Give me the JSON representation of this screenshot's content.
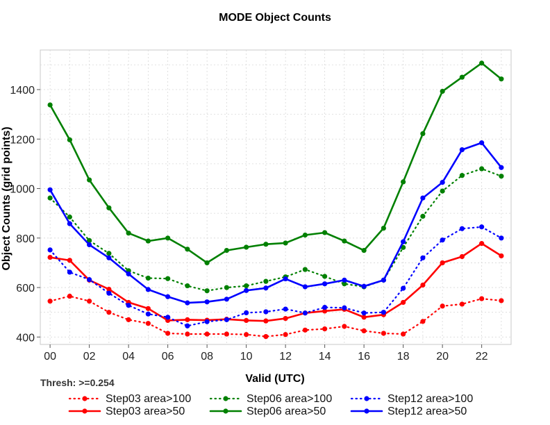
{
  "chart_data": {
    "type": "line",
    "title": "MODE Object Counts",
    "xlabel": "Valid (UTC)",
    "ylabel": "Object Counts (grid points)",
    "annotation": "Thresh: >=0.254",
    "xlim": [
      -0.5,
      23.5
    ],
    "ylim": [
      370,
      1560
    ],
    "x_ticks": [
      "00",
      "02",
      "04",
      "06",
      "08",
      "10",
      "12",
      "14",
      "16",
      "18",
      "20",
      "22"
    ],
    "y_ticks": [
      400,
      600,
      800,
      1000,
      1200,
      1400
    ],
    "grid": true,
    "legend_position": "bottom",
    "x": [
      0,
      1,
      2,
      3,
      4,
      5,
      6,
      7,
      8,
      9,
      10,
      11,
      12,
      13,
      14,
      15,
      16,
      17,
      18,
      19,
      20,
      21,
      22,
      23
    ],
    "series": [
      {
        "name": "Step03 area>100",
        "color": "#ff0000",
        "style": "dotted",
        "values": [
          545,
          565,
          545,
          500,
          470,
          455,
          415,
          412,
          412,
          412,
          410,
          402,
          410,
          428,
          433,
          443,
          425,
          415,
          412,
          463,
          525,
          533,
          555,
          547
        ]
      },
      {
        "name": "Step03 area>50",
        "color": "#ff0000",
        "style": "solid",
        "values": [
          722,
          710,
          630,
          593,
          540,
          515,
          467,
          470,
          468,
          472,
          467,
          465,
          475,
          497,
          505,
          512,
          480,
          490,
          540,
          610,
          700,
          725,
          778,
          728
        ]
      },
      {
        "name": "Step06 area>100",
        "color": "#008000",
        "style": "dotted",
        "values": [
          962,
          885,
          790,
          738,
          668,
          638,
          636,
          607,
          587,
          600,
          607,
          625,
          643,
          673,
          645,
          615,
          603,
          630,
          762,
          888,
          990,
          1053,
          1080,
          1050
        ]
      },
      {
        "name": "Step06 area>50",
        "color": "#008000",
        "style": "solid",
        "values": [
          1338,
          1197,
          1035,
          922,
          820,
          788,
          800,
          755,
          700,
          750,
          763,
          775,
          780,
          812,
          822,
          788,
          750,
          840,
          1027,
          1222,
          1393,
          1450,
          1507,
          1443
        ]
      },
      {
        "name": "Step12 area>100",
        "color": "#0000ff",
        "style": "dotted",
        "values": [
          752,
          662,
          632,
          577,
          528,
          493,
          480,
          445,
          462,
          470,
          498,
          502,
          513,
          497,
          520,
          518,
          497,
          500,
          597,
          720,
          792,
          838,
          845,
          800
        ]
      },
      {
        "name": "Step12 area>50",
        "color": "#0000ff",
        "style": "solid",
        "values": [
          995,
          858,
          773,
          720,
          655,
          592,
          563,
          538,
          542,
          553,
          588,
          598,
          635,
          603,
          615,
          630,
          605,
          630,
          785,
          962,
          1025,
          1157,
          1185,
          1085
        ]
      }
    ]
  }
}
